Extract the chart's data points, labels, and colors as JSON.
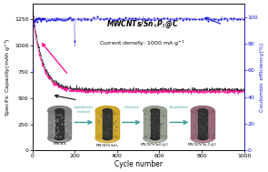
{
  "title_formula": "MWCNTs/Sn$_4$P$_3$@C",
  "title_current": "Current density: 1000 mA g$^{-1}$",
  "xlabel": "Cycle number",
  "ylabel_left": "Specific Capacity(mAh g⁻¹)",
  "ylabel_right": "Coulombic efficiency(%)",
  "xlim": [
    0,
    1000
  ],
  "ylim_left": [
    0,
    1400
  ],
  "ylim_right": [
    0,
    110
  ],
  "yticks_left": [
    0,
    250,
    500,
    750,
    1000,
    1250
  ],
  "yticks_right": [
    0,
    20,
    40,
    60,
    80,
    100
  ],
  "xticks": [
    0,
    200,
    400,
    600,
    800,
    1000
  ],
  "line_color_pink": "#FF1493",
  "line_color_blue": "#1515DD",
  "line_color_black": "#111111",
  "background_color": "#ffffff",
  "inset_labels": [
    "MWCNTs",
    "MWCNTs/SnO$_2$",
    "MWCNTs/SnO$_2$@C",
    "MWCNTs/Sn$_4$P$_3$@C"
  ],
  "step_labels": [
    "Hydrothermal\ntreatment",
    "Calcination",
    "Phosphidation"
  ],
  "arrow_color": "#3A9A9A",
  "cylinder_outer_colors": [
    "#8A8A8A",
    "#C8A020",
    "#A0A888",
    "#9A7878"
  ],
  "cylinder_inner_color": "#303030"
}
